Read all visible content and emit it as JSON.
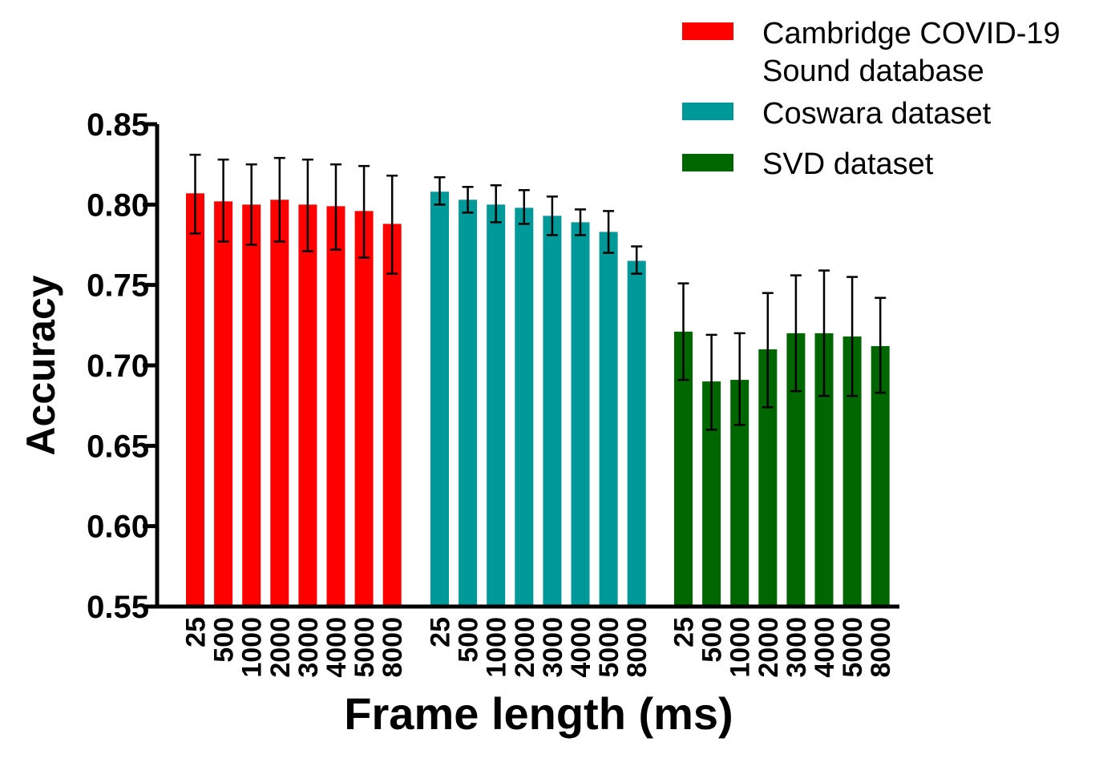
{
  "chart_data": {
    "type": "bar",
    "xlabel": "Frame length (ms)",
    "ylabel": "Accuracy",
    "ylim": [
      0.55,
      0.85
    ],
    "yticks": [
      "0.85",
      "0.80",
      "0.75",
      "0.70",
      "0.65",
      "0.60",
      "0.55"
    ],
    "categories": [
      "25",
      "500",
      "1000",
      "2000",
      "3000",
      "4000",
      "5000",
      "8000"
    ],
    "grid": false,
    "legend_position": "top-right",
    "series": [
      {
        "name": "Cambridge COVID-19 Sound database",
        "legend_lines": [
          "Cambridge COVID-19",
          "Sound database"
        ],
        "color": "#ff0000",
        "values": [
          0.807,
          0.802,
          0.8,
          0.803,
          0.8,
          0.799,
          0.796,
          0.788
        ],
        "error_upper": [
          0.831,
          0.828,
          0.825,
          0.829,
          0.828,
          0.825,
          0.824,
          0.818
        ],
        "error_lower": [
          0.782,
          0.777,
          0.775,
          0.777,
          0.771,
          0.772,
          0.767,
          0.757
        ]
      },
      {
        "name": "Coswara dataset",
        "legend_lines": [
          "Coswara dataset"
        ],
        "color": "#009999",
        "values": [
          0.808,
          0.803,
          0.8,
          0.798,
          0.793,
          0.789,
          0.783,
          0.765
        ],
        "error_upper": [
          0.817,
          0.811,
          0.812,
          0.809,
          0.805,
          0.797,
          0.796,
          0.774
        ],
        "error_lower": [
          0.8,
          0.795,
          0.789,
          0.788,
          0.781,
          0.781,
          0.77,
          0.757
        ]
      },
      {
        "name": "SVD dataset",
        "legend_lines": [
          "SVD dataset"
        ],
        "color": "#006600",
        "values": [
          0.721,
          0.69,
          0.691,
          0.71,
          0.72,
          0.72,
          0.718,
          0.712
        ],
        "error_upper": [
          0.751,
          0.719,
          0.72,
          0.745,
          0.756,
          0.759,
          0.755,
          0.742
        ],
        "error_lower": [
          0.691,
          0.66,
          0.663,
          0.674,
          0.684,
          0.681,
          0.681,
          0.683
        ]
      }
    ]
  }
}
